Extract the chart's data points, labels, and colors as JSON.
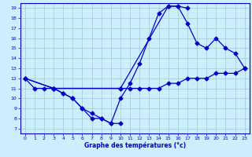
{
  "xlabel": "Graphe des températures (°c)",
  "bg_color": "#cceeff",
  "grid_color": "#99cccc",
  "line_color": "#0000cc",
  "xlim": [
    -0.5,
    23.5
  ],
  "ylim": [
    6.5,
    19.5
  ],
  "xticks": [
    0,
    1,
    2,
    3,
    4,
    5,
    6,
    7,
    8,
    9,
    10,
    11,
    12,
    13,
    14,
    15,
    16,
    17,
    18,
    19,
    20,
    21,
    22,
    23
  ],
  "yticks": [
    7,
    8,
    9,
    10,
    11,
    12,
    13,
    14,
    15,
    16,
    17,
    18,
    19
  ],
  "line1_x": [
    0,
    1,
    2,
    3,
    4,
    5,
    6,
    7,
    8,
    9,
    10
  ],
  "line1_y": [
    12,
    11,
    11,
    11,
    10.5,
    10,
    9,
    8.5,
    8,
    7.5,
    7.5
  ],
  "line2_x": [
    3,
    4,
    5,
    6,
    7,
    8,
    9,
    10,
    11,
    12,
    13,
    14,
    15,
    16,
    17
  ],
  "line2_y": [
    11,
    10.5,
    10,
    9,
    8,
    8,
    7.5,
    10,
    11.5,
    13.5,
    16,
    18.5,
    19.2,
    19.2,
    19
  ],
  "line3_x": [
    0,
    3,
    10,
    15,
    16,
    17,
    18,
    19,
    20,
    21,
    22,
    23
  ],
  "line3_y": [
    12,
    11,
    11,
    19.2,
    19.2,
    17.5,
    15.5,
    15,
    16,
    15,
    14.5,
    13
  ],
  "line4_x": [
    0,
    3,
    10,
    11,
    12,
    13,
    14,
    15,
    16,
    17,
    18,
    19,
    20,
    21,
    22,
    23
  ],
  "line4_y": [
    12,
    11,
    11,
    11,
    11,
    11,
    11,
    11.5,
    11.5,
    12,
    12,
    12,
    12.5,
    12.5,
    12.5,
    13
  ]
}
